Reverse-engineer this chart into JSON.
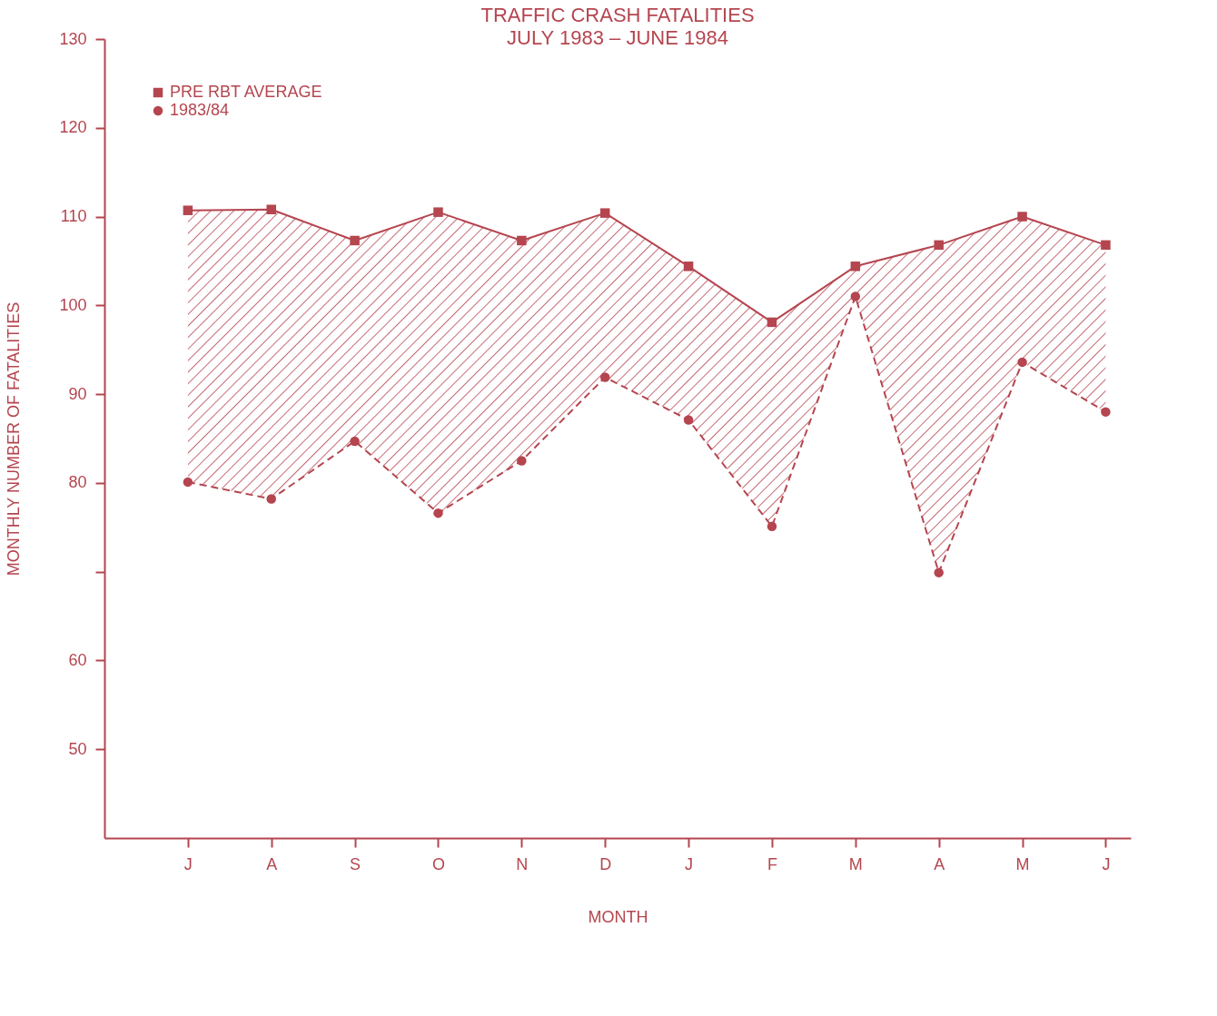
{
  "chart_data": {
    "type": "line",
    "title": "TRAFFIC CRASH FATALITIES",
    "subtitle": "JULY 1983 – JUNE 1984",
    "xlabel": "MONTH",
    "ylabel": "MONTHLY NUMBER OF FATALITIES",
    "categories": [
      "J",
      "A",
      "S",
      "O",
      "N",
      "D",
      "J",
      "F",
      "M",
      "A",
      "M",
      "J"
    ],
    "series": [
      {
        "name": "PRE RBT AVERAGE",
        "color": "#b5454f",
        "marker": "square",
        "line_style": "solid",
        "values": [
          110.7,
          110.8,
          107.3,
          110.5,
          107.3,
          110.4,
          104.4,
          98.1,
          104.4,
          106.8,
          110.0,
          106.8
        ],
        "lower": [
          80.1,
          78.2,
          84.7,
          76.6,
          82.5,
          91.9,
          87.1,
          75.1,
          101.0,
          69.9,
          93.6,
          88.0
        ],
        "upper": [
          110.7,
          110.8,
          107.3,
          110.5,
          107.3,
          110.4,
          104.4,
          98.1,
          104.4,
          106.8,
          110.0,
          106.8
        ]
      },
      {
        "name": "1983/84",
        "color": "#b5454f",
        "marker": "circle",
        "line_style": "dashed",
        "values": [
          80.1,
          78.2,
          84.7,
          76.6,
          82.5,
          91.9,
          87.1,
          75.1,
          101.0,
          69.9,
          93.6,
          88.0
        ]
      }
    ],
    "ylim": [
      40,
      130
    ],
    "yticks": [
      50,
      60,
      {
        "value": 70,
        "label": null
      },
      80,
      90,
      100,
      110,
      120,
      130
    ],
    "grid": false,
    "legend": "top left"
  }
}
